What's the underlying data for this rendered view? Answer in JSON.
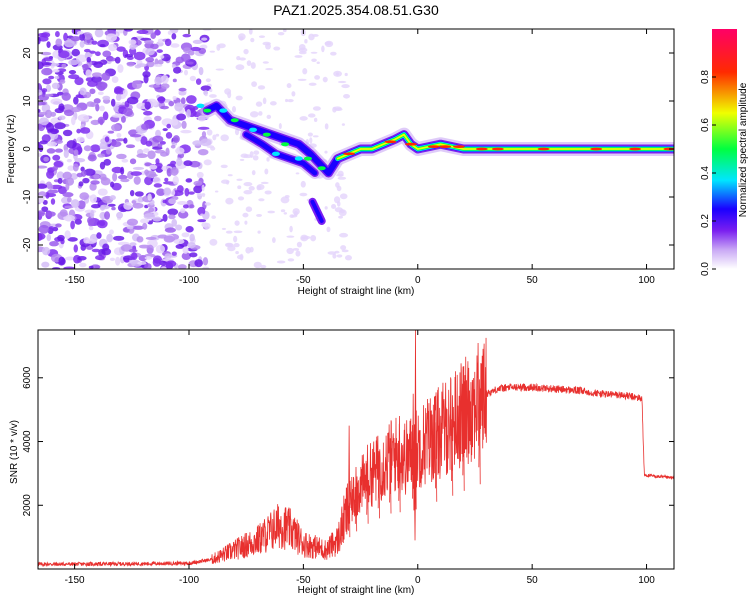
{
  "title": "PAZ1.2025.354.08.51.G30",
  "spectrogram": {
    "type": "heatmap",
    "xlabel": "Height of straight line (km)",
    "ylabel": "Frequency (Hz)",
    "xlim": [
      -166,
      112
    ],
    "ylim": [
      -25,
      25
    ],
    "xticks": [
      -150,
      -100,
      -50,
      0,
      50,
      100
    ],
    "yticks": [
      -20,
      -10,
      0,
      10,
      20
    ],
    "colorbar": {
      "label": "Normalized spectral amplitude",
      "ticks": [
        0.0,
        0.2,
        0.4,
        0.6,
        0.8
      ],
      "tick_labels": [
        "0.0",
        "0.2",
        "0.4",
        "0.6",
        "0.8"
      ],
      "range": [
        0,
        1
      ],
      "colors": [
        "#ffffff",
        "#c9a8f5",
        "#7a1ff0",
        "#1a00ff",
        "#00e6ff",
        "#00ff40",
        "#f0ff00",
        "#ff2a00",
        "#ff0066"
      ]
    },
    "ridge": [
      [
        -92,
        8
      ],
      [
        -88,
        9
      ],
      [
        -82,
        6
      ],
      [
        -76,
        5
      ],
      [
        -70,
        4
      ],
      [
        -64,
        3
      ],
      [
        -58,
        2
      ],
      [
        -52,
        1
      ],
      [
        -47,
        -1
      ],
      [
        -43,
        -3
      ],
      [
        -39,
        -5
      ],
      [
        -35,
        -2
      ],
      [
        -30,
        -1
      ],
      [
        -25,
        0
      ],
      [
        -20,
        0
      ],
      [
        -15,
        1
      ],
      [
        -10,
        2
      ],
      [
        -6,
        3
      ],
      [
        -3,
        1
      ],
      [
        0,
        0
      ],
      [
        10,
        1
      ],
      [
        20,
        0
      ],
      [
        40,
        0
      ],
      [
        60,
        0
      ],
      [
        80,
        0
      ],
      [
        100,
        0
      ],
      [
        112,
        0
      ]
    ],
    "ridge2": [
      [
        -75,
        3
      ],
      [
        -68,
        1
      ],
      [
        -62,
        -1
      ],
      [
        -56,
        -2
      ],
      [
        -50,
        -3
      ],
      [
        -45,
        -5
      ]
    ],
    "dip": [
      [
        -46,
        -11
      ],
      [
        -44,
        -13
      ],
      [
        -42,
        -15
      ]
    ]
  },
  "snr": {
    "type": "line",
    "xlabel": "Height of straight line (km)",
    "ylabel": "SNR (10 * v/v)",
    "xlim": [
      -166,
      112
    ],
    "ylim": [
      0,
      7500
    ],
    "xticks": [
      -150,
      -100,
      -50,
      0,
      50,
      100
    ],
    "yticks": [
      2000,
      4000,
      6000
    ],
    "color": "#e8302e",
    "series_envelope": [
      [
        -166,
        150
      ],
      [
        -130,
        160
      ],
      [
        -100,
        180
      ],
      [
        -90,
        300
      ],
      [
        -80,
        600
      ],
      [
        -70,
        900
      ],
      [
        -60,
        1400
      ],
      [
        -55,
        1200
      ],
      [
        -50,
        800
      ],
      [
        -40,
        600
      ],
      [
        -35,
        900
      ],
      [
        -30,
        2000
      ],
      [
        -25,
        2600
      ],
      [
        -20,
        3000
      ],
      [
        -15,
        3300
      ],
      [
        -10,
        3600
      ],
      [
        -5,
        3500
      ],
      [
        0,
        3800
      ],
      [
        5,
        4100
      ],
      [
        10,
        4300
      ],
      [
        15,
        4600
      ],
      [
        20,
        4900
      ],
      [
        25,
        5200
      ],
      [
        30,
        5500
      ],
      [
        35,
        5650
      ],
      [
        40,
        5700
      ],
      [
        50,
        5700
      ],
      [
        60,
        5650
      ],
      [
        70,
        5600
      ],
      [
        80,
        5500
      ],
      [
        90,
        5450
      ],
      [
        98,
        5350
      ],
      [
        99,
        2950
      ],
      [
        105,
        2900
      ],
      [
        112,
        2850
      ]
    ],
    "spikes": [
      [
        -30,
        4500
      ],
      [
        -27,
        3200
      ],
      [
        -22,
        3900
      ],
      [
        -17,
        3700
      ],
      [
        -12,
        4100
      ],
      [
        -8,
        4800
      ],
      [
        -1,
        7500
      ],
      [
        -2,
        5500
      ],
      [
        8,
        4600
      ],
      [
        15,
        4700
      ],
      [
        20,
        5600
      ],
      [
        27,
        5950
      ]
    ]
  }
}
